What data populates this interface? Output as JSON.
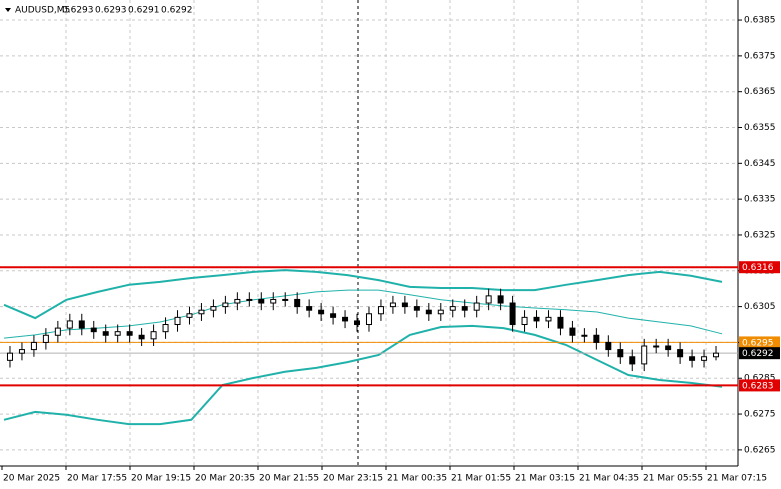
{
  "chart_data": {
    "type": "candlestick",
    "symbol": "AUDUSD,M5",
    "header_ohlc": [
      "0.6293",
      "0.6293",
      "0.6291",
      "0.6292"
    ],
    "ylim": [
      0.62605,
      0.63906
    ],
    "yticks": [
      0.6385,
      0.6375,
      0.6365,
      0.6355,
      0.6345,
      0.6335,
      0.6325,
      0.6315,
      0.6305,
      0.6295,
      0.6285,
      0.6275,
      0.6265
    ],
    "grid": true,
    "x_labels": [
      "20 Mar 2025",
      "20 Mar 17:55",
      "20 Mar 19:15",
      "20 Mar 20:35",
      "20 Mar 21:55",
      "20 Mar 23:15",
      "21 Mar 00:35",
      "21 Mar 01:55",
      "21 Mar 03:15",
      "21 Mar 04:35",
      "21 Mar 05:55",
      "21 Mar 07:15"
    ],
    "candles": [
      [
        0.629,
        0.6294,
        0.6288,
        0.6292
      ],
      [
        0.6292,
        0.6295,
        0.629,
        0.6293
      ],
      [
        0.6293,
        0.6297,
        0.6291,
        0.6295
      ],
      [
        0.6295,
        0.6299,
        0.6293,
        0.6297
      ],
      [
        0.6297,
        0.6301,
        0.6295,
        0.6299
      ],
      [
        0.6299,
        0.6303,
        0.6297,
        0.6301
      ],
      [
        0.6301,
        0.6303,
        0.6297,
        0.6299
      ],
      [
        0.6299,
        0.6301,
        0.6296,
        0.6298
      ],
      [
        0.6298,
        0.63,
        0.6295,
        0.6297
      ],
      [
        0.6297,
        0.63,
        0.6295,
        0.6298
      ],
      [
        0.6298,
        0.63,
        0.6295,
        0.6297
      ],
      [
        0.6297,
        0.6299,
        0.6294,
        0.6296
      ],
      [
        0.6296,
        0.63,
        0.6294,
        0.6298
      ],
      [
        0.6298,
        0.6302,
        0.6296,
        0.63
      ],
      [
        0.63,
        0.6304,
        0.6298,
        0.6302
      ],
      [
        0.6302,
        0.6305,
        0.63,
        0.6303
      ],
      [
        0.6303,
        0.6306,
        0.6301,
        0.6304
      ],
      [
        0.6304,
        0.6307,
        0.6302,
        0.6305
      ],
      [
        0.6305,
        0.6308,
        0.6303,
        0.6306
      ],
      [
        0.6306,
        0.6309,
        0.6304,
        0.6307
      ],
      [
        0.6307,
        0.6309,
        0.6305,
        0.6307
      ],
      [
        0.6307,
        0.6309,
        0.6304,
        0.6306
      ],
      [
        0.6306,
        0.6309,
        0.6304,
        0.6307
      ],
      [
        0.6307,
        0.6309,
        0.6305,
        0.6307
      ],
      [
        0.6307,
        0.6309,
        0.6303,
        0.6305
      ],
      [
        0.6305,
        0.6307,
        0.6302,
        0.6304
      ],
      [
        0.6304,
        0.6306,
        0.6301,
        0.6303
      ],
      [
        0.6303,
        0.6305,
        0.63,
        0.6302
      ],
      [
        0.6302,
        0.6304,
        0.6299,
        0.6301
      ],
      [
        0.6301,
        0.6303,
        0.6298,
        0.63
      ],
      [
        0.63,
        0.6305,
        0.6298,
        0.6303
      ],
      [
        0.6303,
        0.6307,
        0.6301,
        0.6305
      ],
      [
        0.6305,
        0.6308,
        0.6303,
        0.6306
      ],
      [
        0.6306,
        0.6308,
        0.6303,
        0.6305
      ],
      [
        0.6305,
        0.6307,
        0.6302,
        0.6304
      ],
      [
        0.6304,
        0.6306,
        0.6301,
        0.6303
      ],
      [
        0.6303,
        0.6306,
        0.6301,
        0.6304
      ],
      [
        0.6304,
        0.6307,
        0.6302,
        0.6305
      ],
      [
        0.6305,
        0.6307,
        0.6302,
        0.6304
      ],
      [
        0.6304,
        0.6308,
        0.6302,
        0.6306
      ],
      [
        0.6306,
        0.631,
        0.6304,
        0.6308
      ],
      [
        0.6308,
        0.631,
        0.6304,
        0.6306
      ],
      [
        0.6306,
        0.6308,
        0.6298,
        0.63
      ],
      [
        0.63,
        0.6304,
        0.6298,
        0.6302
      ],
      [
        0.6302,
        0.6304,
        0.6299,
        0.6301
      ],
      [
        0.6301,
        0.6304,
        0.6299,
        0.6302
      ],
      [
        0.6302,
        0.6304,
        0.6297,
        0.6299
      ],
      [
        0.6299,
        0.6301,
        0.6295,
        0.6297
      ],
      [
        0.6297,
        0.6299,
        0.6295,
        0.6297
      ],
      [
        0.6297,
        0.6299,
        0.6293,
        0.6295
      ],
      [
        0.6295,
        0.6297,
        0.6291,
        0.6293
      ],
      [
        0.6293,
        0.6295,
        0.6289,
        0.6291
      ],
      [
        0.6291,
        0.6293,
        0.6287,
        0.6289
      ],
      [
        0.6289,
        0.6296,
        0.6287,
        0.6294
      ],
      [
        0.6294,
        0.6296,
        0.6292,
        0.6294
      ],
      [
        0.6294,
        0.6296,
        0.6291,
        0.6293
      ],
      [
        0.6293,
        0.6295,
        0.6289,
        0.6291
      ],
      [
        0.6291,
        0.6293,
        0.6288,
        0.629
      ],
      [
        0.629,
        0.6293,
        0.6288,
        0.6291
      ],
      [
        0.6291,
        0.6294,
        0.629,
        0.6292
      ]
    ],
    "bands": [
      {
        "color": "#20b2aa",
        "width": 2,
        "values": [
          0.63055,
          0.63018,
          0.63069,
          0.63091,
          0.63111,
          0.63119,
          0.6313,
          0.63138,
          0.63147,
          0.63152,
          0.63147,
          0.63138,
          0.63124,
          0.63105,
          0.63102,
          0.63102,
          0.63096,
          0.63096,
          0.63111,
          0.63124,
          0.63138,
          0.63147,
          0.63136,
          0.63119
        ]
      },
      {
        "color": "#20b2aa",
        "width": 1,
        "values": [
          0.62962,
          0.62971,
          0.62985,
          0.6299,
          0.62996,
          0.63007,
          0.63027,
          0.63055,
          0.63069,
          0.6308,
          0.63091,
          0.63096,
          0.63096,
          0.63083,
          0.63069,
          0.6306,
          0.63052,
          0.63046,
          0.63041,
          0.63035,
          0.63018,
          0.63007,
          0.62996,
          0.62974
        ]
      },
      {
        "color": "#20b2aa",
        "width": 2,
        "values": [
          0.62734,
          0.62756,
          0.62748,
          0.62734,
          0.62722,
          0.62722,
          0.62734,
          0.62831,
          0.62851,
          0.62868,
          0.62879,
          0.62895,
          0.62915,
          0.62971,
          0.62993,
          0.62996,
          0.6299,
          0.62971,
          0.62943,
          0.62901,
          0.62859,
          0.62845,
          0.62837,
          0.62826
        ]
      }
    ],
    "levels": [
      {
        "value": 0.6316,
        "color": "#e00000",
        "width": 2
      },
      {
        "value": 0.6295,
        "color": "#f08c00",
        "width": 1
      },
      {
        "value": 0.6292,
        "color": "#b0b0b0",
        "width": 1,
        "label_color": "#000000"
      },
      {
        "value": 0.6283,
        "color": "#e00000",
        "width": 2
      }
    ]
  }
}
